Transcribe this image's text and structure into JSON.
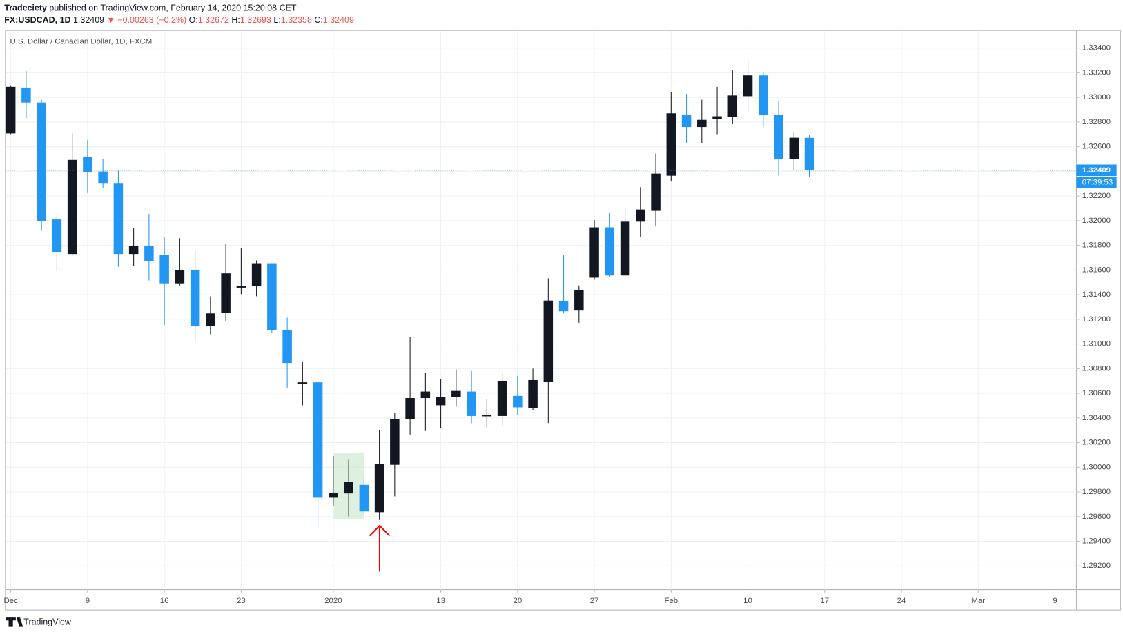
{
  "header": {
    "author": "Tradeciety",
    "published": "published on TradingView.com, February 14, 2020 15:20:08 CET",
    "symbol": "FX:USDCAD, 1D",
    "change": "▼ −0.00263 (−0.2%)",
    "ohlc_labels": [
      "O:",
      "H:",
      "L:",
      "C:"
    ]
  },
  "footer": "TradingView",
  "countdown": "07:39:53",
  "chart_data": {
    "type": "candlestick",
    "title": "U.S. Dollar / Canadian Dollar, 1D, FXCM",
    "categories": [
      null,
      null,
      null,
      null,
      null,
      null,
      null,
      null,
      null,
      null,
      null,
      null,
      null,
      null,
      null,
      null,
      null,
      null,
      null,
      null,
      null,
      null,
      null,
      null,
      null,
      null,
      null,
      null,
      null,
      null,
      null,
      null,
      null,
      null,
      null,
      null,
      null,
      null,
      null,
      null,
      null,
      null,
      null,
      null,
      null,
      null,
      null,
      null,
      null,
      null,
      null,
      null,
      null
    ],
    "series": {
      "open": [
        1.32708,
        1.3308,
        1.32958,
        1.3201,
        1.3173,
        1.32516,
        1.32399,
        1.32306,
        1.3173,
        1.31794,
        1.31725,
        1.31492,
        1.31597,
        1.31143,
        1.31253,
        1.31457,
        1.31469,
        1.31655,
        1.31114,
        1.30678,
        1.30689,
        1.29753,
        1.29788,
        1.29857,
        1.29636,
        1.3002,
        1.30393,
        1.30561,
        1.30503,
        1.30567,
        1.30614,
        1.30416,
        1.30416,
        1.30579,
        1.3048,
        1.30695,
        1.31347,
        1.31271,
        1.31538,
        1.31946,
        1.31556,
        1.31992,
        1.3208,
        1.32365,
        1.32859,
        1.3276,
        1.32824,
        1.32842,
        1.3301,
        1.33179,
        1.32859,
        1.32498,
        1.32672
      ],
      "high": [
        1.33098,
        1.33214,
        1.32981,
        1.32045,
        1.32708,
        1.32655,
        1.32504,
        1.32405,
        1.3194,
        1.32056,
        1.3187,
        1.31858,
        1.3176,
        1.31387,
        1.31812,
        1.31777,
        1.31678,
        1.31655,
        1.31213,
        1.30852,
        1.30689,
        1.3009,
        1.30061,
        1.29904,
        1.30299,
        1.30439,
        1.31056,
        1.30765,
        1.30712,
        1.30794,
        1.30782,
        1.30555,
        1.30759,
        1.30742,
        1.308,
        1.31533,
        1.31725,
        1.31475,
        1.32004,
        1.32062,
        1.32109,
        1.32272,
        1.32545,
        1.33045,
        1.33028,
        1.32981,
        1.33086,
        1.3322,
        1.33301,
        1.33202,
        1.3297,
        1.32719,
        1.32693
      ],
      "low": [
        1.32702,
        1.3283,
        1.31917,
        1.31591,
        1.31719,
        1.32225,
        1.32266,
        1.31626,
        1.31632,
        1.31515,
        1.31155,
        1.31475,
        1.31027,
        1.31079,
        1.31184,
        1.31405,
        1.31387,
        1.31091,
        1.30643,
        1.30503,
        1.29508,
        1.29683,
        1.29601,
        1.29619,
        1.29572,
        1.29764,
        1.30265,
        1.30294,
        1.30317,
        1.30491,
        1.30358,
        1.30323,
        1.3034,
        1.30427,
        1.30462,
        1.30358,
        1.31248,
        1.31172,
        1.31521,
        1.31544,
        1.3155,
        1.3187,
        1.31957,
        1.32318,
        1.32632,
        1.32626,
        1.32702,
        1.32783,
        1.32882,
        1.3276,
        1.32365,
        1.32405,
        1.32358
      ],
      "close": [
        1.33086,
        1.32958,
        1.31998,
        1.31742,
        1.32493,
        1.32394,
        1.32306,
        1.3173,
        1.31794,
        1.31672,
        1.31492,
        1.31597,
        1.31143,
        1.31248,
        1.31573,
        1.31469,
        1.31655,
        1.31114,
        1.30846,
        1.30689,
        1.29753,
        1.29793,
        1.29881,
        1.29642,
        1.30026,
        1.30393,
        1.30561,
        1.30614,
        1.30567,
        1.30619,
        1.30416,
        1.30422,
        1.30701,
        1.30486,
        1.30707,
        1.31352,
        1.31265,
        1.3144,
        1.31946,
        1.31556,
        1.31992,
        1.32091,
        1.32382,
        1.32871,
        1.3276,
        1.32818,
        1.32847,
        1.33016,
        1.33179,
        1.32859,
        1.32498,
        1.32673,
        1.32409
      ]
    },
    "up_color": "#131722",
    "down_color": "#2196f3",
    "xlim": [
      -0.33,
      69.39
    ],
    "xticks": [
      {
        "value": 0,
        "label": "Dec"
      },
      {
        "value": 5,
        "label": "9"
      },
      {
        "value": 10,
        "label": "16"
      },
      {
        "value": 15,
        "label": "23"
      },
      {
        "value": 21,
        "label": "2020"
      },
      {
        "value": 28,
        "label": "13"
      },
      {
        "value": 33,
        "label": "20"
      },
      {
        "value": 38,
        "label": "27"
      },
      {
        "value": 43,
        "label": "Feb"
      },
      {
        "value": 48,
        "label": "10"
      },
      {
        "value": 53,
        "label": "17"
      },
      {
        "value": 58,
        "label": "24"
      },
      {
        "value": 63,
        "label": "Mar"
      },
      {
        "value": 68,
        "label": "9"
      }
    ],
    "ylim": [
      1.29008,
      1.3354
    ],
    "yticks": [
      {
        "value": 1.292,
        "label": "1.29200"
      },
      {
        "value": 1.294,
        "label": "1.29400"
      },
      {
        "value": 1.296,
        "label": "1.29600"
      },
      {
        "value": 1.298,
        "label": "1.29800"
      },
      {
        "value": 1.3,
        "label": "1.30000"
      },
      {
        "value": 1.302,
        "label": "1.30200"
      },
      {
        "value": 1.304,
        "label": "1.30400"
      },
      {
        "value": 1.306,
        "label": "1.30600"
      },
      {
        "value": 1.308,
        "label": "1.30800"
      },
      {
        "value": 1.31,
        "label": "1.31000"
      },
      {
        "value": 1.312,
        "label": "1.31200"
      },
      {
        "value": 1.314,
        "label": "1.31400"
      },
      {
        "value": 1.316,
        "label": "1.31600"
      },
      {
        "value": 1.318,
        "label": "1.31800"
      },
      {
        "value": 1.32,
        "label": "1.32000"
      },
      {
        "value": 1.322,
        "label": "1.32200"
      },
      {
        "value": 1.324,
        "label": "1.32400"
      },
      {
        "value": 1.326,
        "label": "1.32600"
      },
      {
        "value": 1.328,
        "label": "1.32800"
      },
      {
        "value": 1.33,
        "label": "1.33000"
      },
      {
        "value": 1.332,
        "label": "1.33200"
      },
      {
        "value": 1.334,
        "label": "1.33400"
      }
    ],
    "grid": true
  }
}
